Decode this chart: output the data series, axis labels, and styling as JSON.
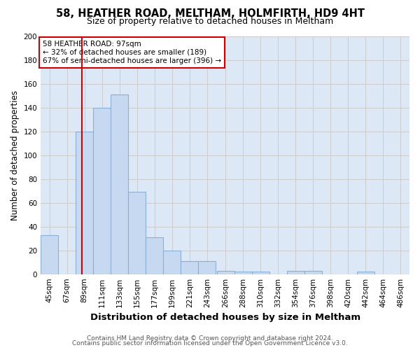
{
  "title_line1": "58, HEATHER ROAD, MELTHAM, HOLMFIRTH, HD9 4HT",
  "title_line2": "Size of property relative to detached houses in Meltham",
  "xlabel": "Distribution of detached houses by size in Meltham",
  "ylabel": "Number of detached properties",
  "footnote1": "Contains HM Land Registry data © Crown copyright and database right 2024.",
  "footnote2": "Contains public sector information licensed under the Open Government Licence v3.0.",
  "bins": [
    45,
    67,
    89,
    111,
    133,
    155,
    177,
    199,
    221,
    243,
    266,
    288,
    310,
    332,
    354,
    376,
    398,
    420,
    442,
    464,
    486
  ],
  "bar_heights": [
    33,
    0,
    120,
    140,
    151,
    69,
    31,
    20,
    11,
    11,
    3,
    2,
    2,
    0,
    3,
    3,
    0,
    0,
    2,
    0,
    0
  ],
  "bin_labels": [
    "45sqm",
    "67sqm",
    "89sqm",
    "111sqm",
    "133sqm",
    "155sqm",
    "177sqm",
    "199sqm",
    "221sqm",
    "243sqm",
    "266sqm",
    "288sqm",
    "310sqm",
    "332sqm",
    "354sqm",
    "376sqm",
    "398sqm",
    "420sqm",
    "442sqm",
    "464sqm",
    "486sqm"
  ],
  "bar_color": "#c6d9f0",
  "bar_edge_color": "#8ab0d8",
  "vline_x": 97,
  "vline_color": "#cc0000",
  "annotation_box_text": "58 HEATHER ROAD: 97sqm\n← 32% of detached houses are smaller (189)\n67% of semi-detached houses are larger (396) →",
  "annotation_box_color": "#cc0000",
  "annotation_box_fill": "#ffffff",
  "ylim": [
    0,
    200
  ],
  "yticks": [
    0,
    20,
    40,
    60,
    80,
    100,
    120,
    140,
    160,
    180,
    200
  ],
  "grid_color": "#cccccc",
  "bg_color": "#dce8f5",
  "title1_fontsize": 10.5,
  "title2_fontsize": 9,
  "xlabel_fontsize": 9.5,
  "ylabel_fontsize": 8.5,
  "tick_fontsize": 7.5,
  "annotation_fontsize": 7.5,
  "footnote_fontsize": 6.5
}
